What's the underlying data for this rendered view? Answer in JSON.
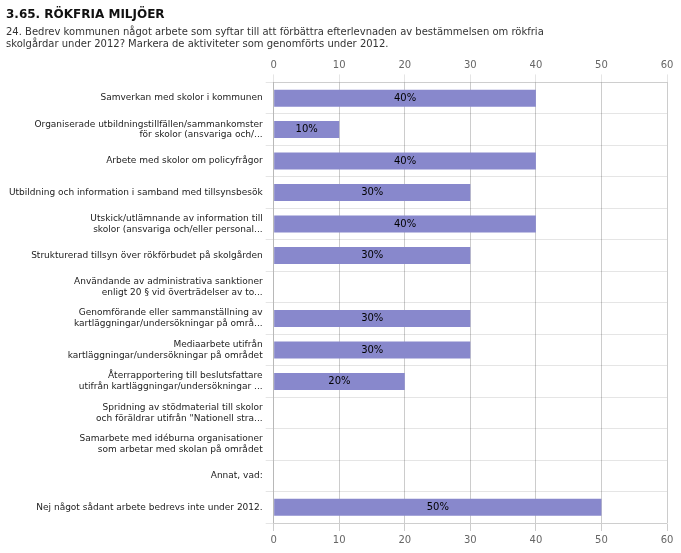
{
  "chart_data": {
    "type": "bar",
    "orientation": "horizontal",
    "title": "3.65. RÖKFRIA MILJÖER",
    "subtitle": "24. Bedrev kommunen något arbete som syftar till att förbättra efterlevnaden av bestämmelsen om rökfria\nskolgårdar under 2012? Markera de aktiviteter som genomförts under 2012.",
    "categories": [
      "Samverkan med skolor i kommunen",
      "Organiserade utbildningstillfällen/sammankomster\nför skolor (ansvariga och/...",
      "Arbete med skolor om policyfrågor",
      "Utbildning och information i samband med tillsynsbesök",
      "Utskick/utlämnande av information till\nskolor (ansvariga och/eller personal...",
      "Strukturerad tillsyn över rökförbudet på skolgården",
      "Användande av administrativa sanktioner\nenligt 20 § vid överträdelser av to...",
      "Genomförande eller sammanställning av\nkartläggningar/undersökningar på områ...",
      "Mediaarbete utifrån\nkartläggningar/undersökningar på området",
      "Återrapportering till beslutsfattare\nutifrån kartläggningar/undersökningar ...",
      "Spridning av stödmaterial till skolor\noch föräldrar utifrån \"Nationell stra...",
      "Samarbete med idéburna organisationer\nsom arbetar med skolan på området",
      "Annat, vad:",
      "Nej något sådant arbete bedrevs inte under 2012."
    ],
    "values": [
      40,
      10,
      40,
      30,
      40,
      30,
      0,
      30,
      30,
      20,
      0,
      0,
      0,
      50
    ],
    "value_labels": [
      "40%",
      "10%",
      "40%",
      "30%",
      "40%",
      "30%",
      null,
      "30%",
      "30%",
      "20%",
      null,
      null,
      null,
      "50%"
    ],
    "data_labels": true,
    "color": "#8888cc",
    "xlim": [
      0,
      60
    ],
    "xticks": [
      0,
      10,
      20,
      30,
      40,
      50,
      60
    ],
    "grid": true
  }
}
